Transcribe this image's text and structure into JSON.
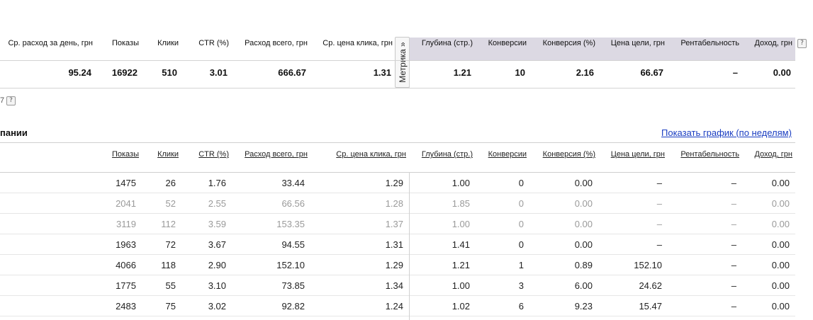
{
  "summary": {
    "headers": {
      "avg_spend_day": "Ср. расход за день, грн",
      "impressions": "Показы",
      "clicks": "Клики",
      "ctr": "CTR (%)",
      "spend_total": "Расход всего, грн",
      "avg_cpc": "Ср. цена клика, грн",
      "depth": "Глубина (стр.)",
      "conversions": "Конверсии",
      "conv_rate": "Конверсия (%)",
      "goal_cost": "Цена цели, грн",
      "profitability": "Рентабельность",
      "revenue": "Доход, грн"
    },
    "values": {
      "avg_spend_day": "95.24",
      "impressions": "16922",
      "clicks": "510",
      "ctr": "3.01",
      "spend_total": "666.67",
      "avg_cpc": "1.31",
      "depth": "1.21",
      "conversions": "10",
      "conv_rate": "2.16",
      "goal_cost": "66.67",
      "profitability": "–",
      "revenue": "0.00"
    },
    "metrika_tab": "Метрика »",
    "help_glyph": "?",
    "fragment": "7"
  },
  "detail": {
    "section_title": "пании",
    "chart_link": "Показать график (по неделям)",
    "headers": {
      "impressions": "Показы",
      "clicks": "Клики",
      "ctr": "CTR (%)",
      "spend_total": "Расход всего, грн",
      "avg_cpc": "Ср. цена клика, грн",
      "depth": "Глубина (стр.)",
      "conversions": "Конверсии",
      "conv_rate": "Конверсия (%)",
      "goal_cost": "Цена цели, грн",
      "profitability": "Рентабельность",
      "revenue": "Доход, грн"
    },
    "rows": [
      {
        "dim": false,
        "cells": [
          "1475",
          "26",
          "1.76",
          "33.44",
          "1.29",
          "1.00",
          "0",
          "0.00",
          "–",
          "–",
          "0.00"
        ]
      },
      {
        "dim": true,
        "cells": [
          "2041",
          "52",
          "2.55",
          "66.56",
          "1.28",
          "1.85",
          "0",
          "0.00",
          "–",
          "–",
          "0.00"
        ]
      },
      {
        "dim": true,
        "cells": [
          "3119",
          "112",
          "3.59",
          "153.35",
          "1.37",
          "1.00",
          "0",
          "0.00",
          "–",
          "–",
          "0.00"
        ]
      },
      {
        "dim": false,
        "cells": [
          "1963",
          "72",
          "3.67",
          "94.55",
          "1.31",
          "1.41",
          "0",
          "0.00",
          "–",
          "–",
          "0.00"
        ]
      },
      {
        "dim": false,
        "cells": [
          "4066",
          "118",
          "2.90",
          "152.10",
          "1.29",
          "1.21",
          "1",
          "0.89",
          "152.10",
          "–",
          "0.00"
        ]
      },
      {
        "dim": false,
        "cells": [
          "1775",
          "55",
          "3.10",
          "73.85",
          "1.34",
          "1.00",
          "3",
          "6.00",
          "24.62",
          "–",
          "0.00"
        ]
      },
      {
        "dim": false,
        "cells": [
          "2483",
          "75",
          "3.02",
          "92.82",
          "1.24",
          "1.02",
          "6",
          "9.23",
          "15.47",
          "–",
          "0.00"
        ]
      }
    ]
  },
  "colors": {
    "metrika_band": "#dcd9e3",
    "link": "#1a3dc1",
    "dim_text": "#9a9a9a"
  }
}
